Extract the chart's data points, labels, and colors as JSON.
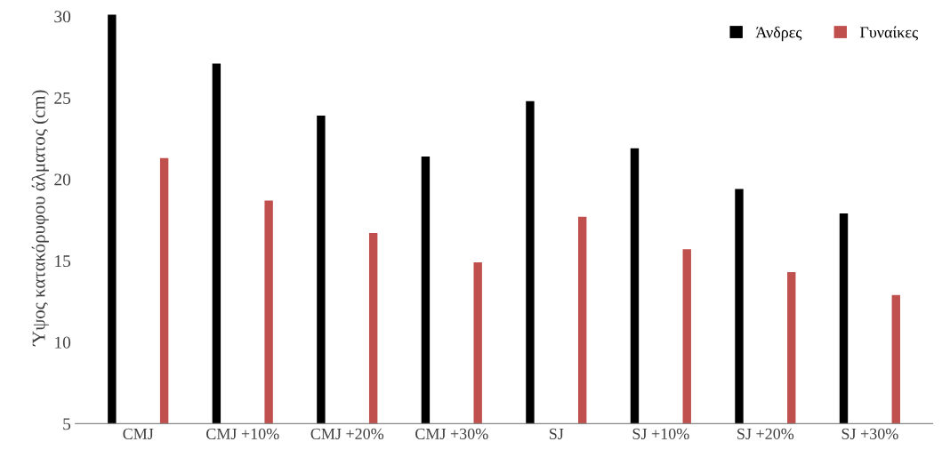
{
  "chart_data": {
    "type": "bar",
    "ylabel": "Ύψος κατακόρυφου άλματος (cm)",
    "categories": [
      "CMJ",
      "CMJ +10%",
      "CMJ +20%",
      "CMJ +30%",
      "SJ",
      "SJ +10%",
      "SJ +20%",
      "SJ +30%"
    ],
    "series": [
      {
        "name": "Άνδρες",
        "color": "#000000",
        "values": [
          30.1,
          27.1,
          23.9,
          21.4,
          24.8,
          21.9,
          19.4,
          17.9
        ]
      },
      {
        "name": "Γυναίκες",
        "color": "#c0504d",
        "values": [
          21.3,
          18.7,
          16.7,
          14.9,
          17.7,
          15.7,
          14.3,
          12.9
        ]
      }
    ],
    "ylim": [
      5,
      30.3
    ],
    "yticks": [
      5,
      10,
      15,
      20,
      25,
      30
    ],
    "grid": false,
    "legend": "top right"
  }
}
